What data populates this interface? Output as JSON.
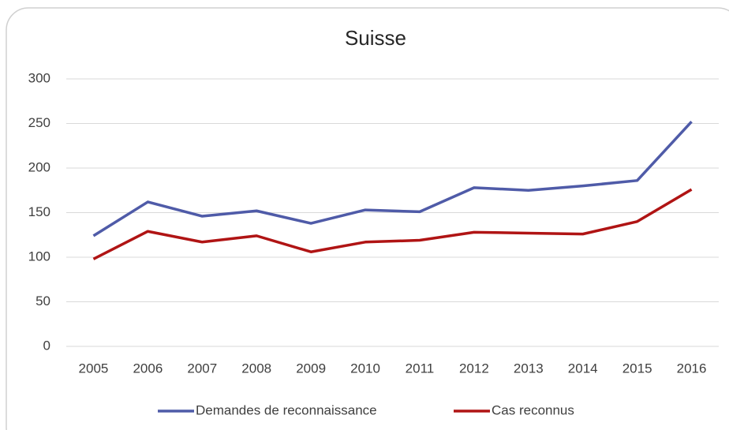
{
  "chart_data": {
    "type": "line",
    "title": "Suisse",
    "categories": [
      "2005",
      "2006",
      "2007",
      "2008",
      "2009",
      "2010",
      "2011",
      "2012",
      "2013",
      "2014",
      "2015",
      "2016"
    ],
    "series": [
      {
        "name": "Demandes de reconnaissance",
        "color": "#4f5ba8",
        "values": [
          124,
          162,
          146,
          152,
          138,
          153,
          151,
          178,
          175,
          180,
          186,
          252
        ]
      },
      {
        "name": "Cas reconnus",
        "color": "#b01414",
        "values": [
          98,
          129,
          117,
          124,
          106,
          117,
          119,
          128,
          127,
          126,
          140,
          176
        ]
      }
    ],
    "ylim": [
      0,
      300
    ],
    "yticks": [
      0,
      50,
      100,
      150,
      200,
      250,
      300
    ],
    "grid": true,
    "legend": "bottom"
  }
}
